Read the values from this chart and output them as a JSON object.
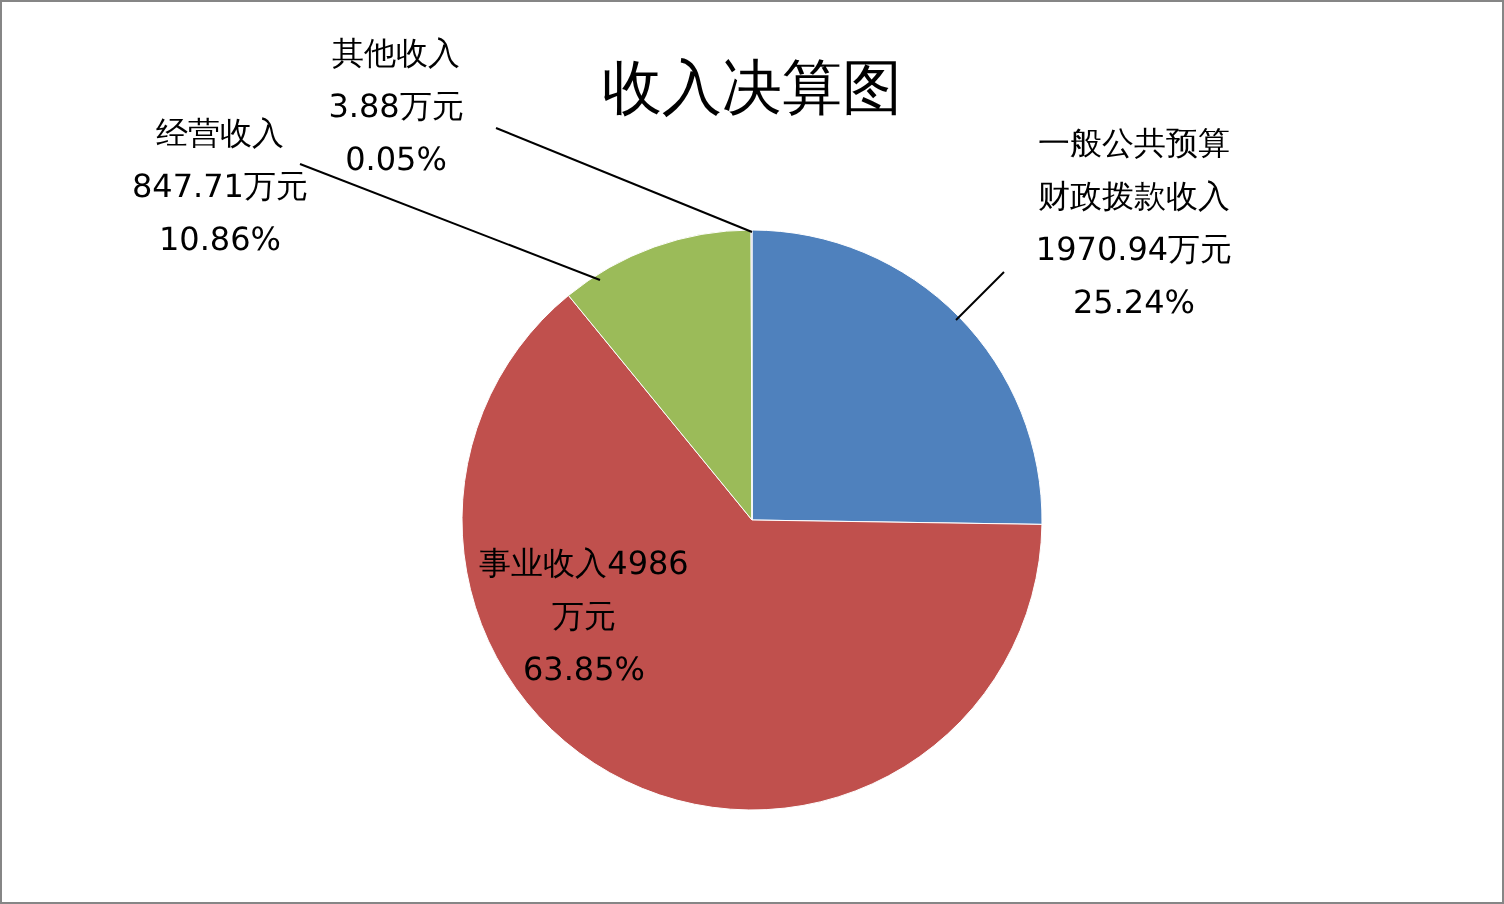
{
  "chart_data": {
    "type": "pie",
    "title": "收入决算图",
    "categories": [
      "一般公共预算财政拨款收入",
      "事业收入",
      "经营收入",
      "其他收入"
    ],
    "values": [
      1970.94,
      4986,
      847.71,
      3.88
    ],
    "value_labels": [
      "1970.94万元\n25.24%",
      "4986\n万元\n63.85%",
      "847.71万元\n10.86%",
      "3.88万元\n0.05%"
    ],
    "colors": [
      "#4f81bd",
      "#c0504d",
      "#9bbb59",
      "#8064a2"
    ]
  }
}
